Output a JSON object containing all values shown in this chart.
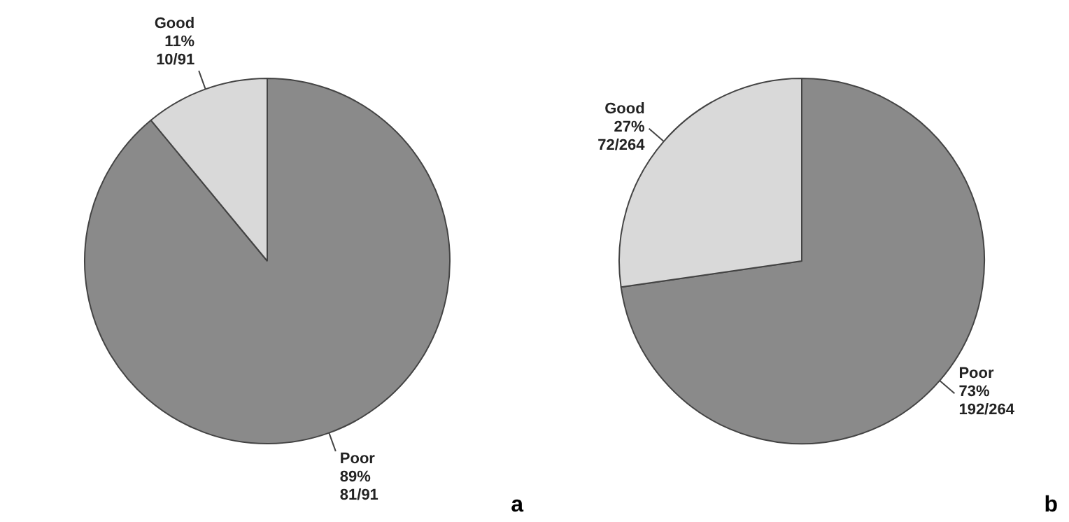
{
  "chart_data": [
    {
      "type": "pie",
      "categories": [
        "Poor",
        "Good"
      ],
      "values": [
        81,
        10
      ],
      "colors": [
        "#8a8a8a",
        "#d9d9d9"
      ],
      "value_labels": [
        "89%\n81/91",
        "11%\n10/91"
      ],
      "legend": false,
      "annotations": [
        "a"
      ]
    },
    {
      "type": "pie",
      "categories": [
        "Poor",
        "Good"
      ],
      "values": [
        192,
        72
      ],
      "colors": [
        "#8a8a8a",
        "#d9d9d9"
      ],
      "value_labels": [
        "73%\n192/264",
        "27%\n72/264"
      ],
      "legend": false,
      "annotations": [
        "b"
      ]
    }
  ]
}
